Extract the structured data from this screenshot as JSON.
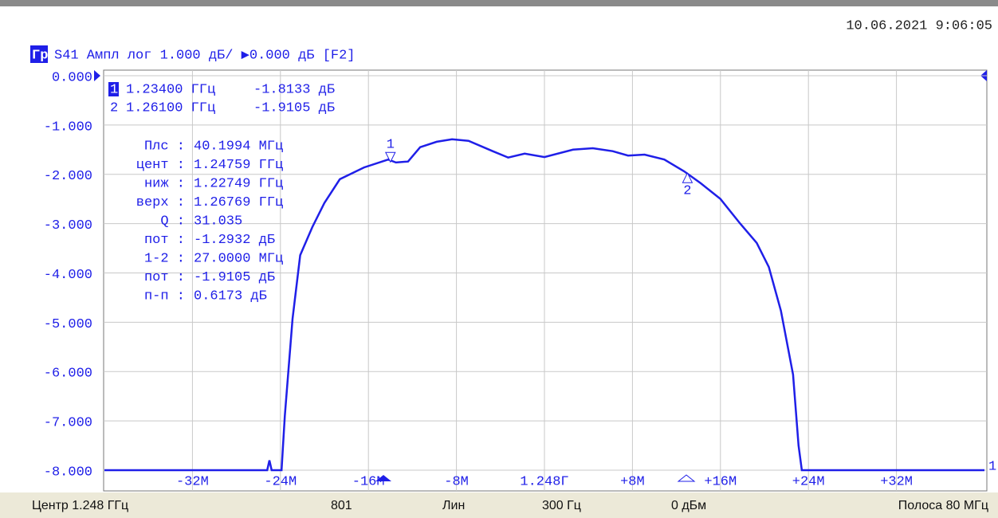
{
  "datetime": "10.06.2021 9:06:05",
  "header": {
    "trace_label": "Гр1",
    "trace_info": "S41 Ампл лог 1.000 дБ/ ▶0.000 дБ [F2]"
  },
  "chart_data": {
    "type": "line",
    "xlim": [
      -40,
      40
    ],
    "ylim": [
      -8,
      0
    ],
    "xticks": [
      {
        "value": -32,
        "label": "-32M"
      },
      {
        "value": -24,
        "label": "-24M"
      },
      {
        "value": -16,
        "label": "-16M"
      },
      {
        "value": -8,
        "label": "-8M"
      },
      {
        "value": 0,
        "label": "1.248Г"
      },
      {
        "value": 8,
        "label": "+8M"
      },
      {
        "value": 16,
        "label": "+16M"
      },
      {
        "value": 24,
        "label": "+24M"
      },
      {
        "value": 32,
        "label": "+32M"
      }
    ],
    "yticks": [
      {
        "value": 0,
        "label": "0.000"
      },
      {
        "value": -1,
        "label": "-1.000"
      },
      {
        "value": -2,
        "label": "-2.000"
      },
      {
        "value": -3,
        "label": "-3.000"
      },
      {
        "value": -4,
        "label": "-4.000"
      },
      {
        "value": -5,
        "label": "-5.000"
      },
      {
        "value": -6,
        "label": "-6.000"
      },
      {
        "value": -7,
        "label": "-7.000"
      },
      {
        "value": -8,
        "label": "-8.000"
      }
    ],
    "grid": true,
    "series": [
      {
        "name": "S41",
        "color": "#1f1fe8",
        "x": [
          -40,
          -25.5,
          -25.2,
          -25.0,
          -24.8,
          -23.9,
          -23.6,
          -22.9,
          -22.2,
          -21.1,
          -20.0,
          -18.6,
          -16.4,
          -14.2,
          -13.5,
          -12.4,
          -11.3,
          -9.8,
          -8.4,
          -6.9,
          -4.7,
          -3.3,
          -1.8,
          0,
          2.6,
          4.4,
          6.2,
          7.6,
          9.1,
          10.9,
          12.7,
          14.2,
          16.0,
          17.8,
          19.3,
          20.4,
          21.5,
          22.6,
          23.1,
          23.4,
          40
        ],
        "values": [
          -8,
          -8,
          -8,
          -7.8,
          -8,
          -8,
          -6.9,
          -4.93,
          -3.64,
          -3.07,
          -2.58,
          -2.1,
          -1.86,
          -1.7,
          -1.76,
          -1.74,
          -1.45,
          -1.34,
          -1.29,
          -1.32,
          -1.53,
          -1.66,
          -1.58,
          -1.65,
          -1.5,
          -1.47,
          -1.53,
          -1.62,
          -1.6,
          -1.7,
          -1.94,
          -2.18,
          -2.5,
          -3.0,
          -3.39,
          -3.88,
          -4.77,
          -6.06,
          -7.5,
          -8,
          -8
        ]
      }
    ],
    "channel_marker": "1",
    "markers": [
      {
        "id": "1",
        "freq": "1.23400 ГГц",
        "value": "-1.8133 дБ",
        "x": -14,
        "y": -1.8133
      },
      {
        "id": "2",
        "freq": "1.26100 ГГц",
        "value": "-1.9105 дБ",
        "x": 13,
        "y": -1.9105
      }
    ],
    "stats": [
      [
        "Плс :",
        "40.1994 МГц"
      ],
      [
        "цент :",
        "1.24759 ГГц"
      ],
      [
        "ниж :",
        "1.22749 ГГц"
      ],
      [
        "верх :",
        "1.26769 ГГц"
      ],
      [
        "Q :",
        "31.035"
      ],
      [
        "пот :",
        "-1.2932 дБ"
      ],
      [
        "1-2 :",
        "27.0000 МГц"
      ],
      [
        "пот :",
        "-1.9105 дБ"
      ],
      [
        "п-п :",
        "0.6173 дБ"
      ]
    ]
  },
  "status_bar": [
    "Центр 1.248 ГГц",
    "801",
    "Лин",
    "300 Гц",
    "0 дБм",
    "Полоса 80 МГц"
  ]
}
